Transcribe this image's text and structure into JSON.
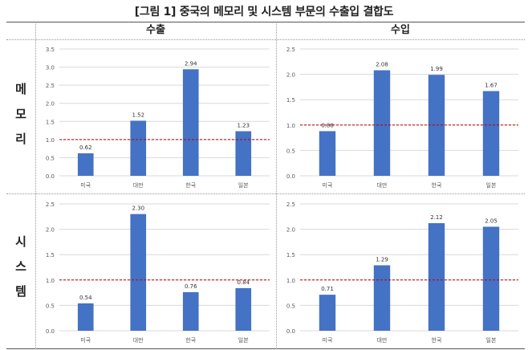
{
  "title": "[그림 1] 중국의 메모리 및 시스템 부문의 수출입 결합도",
  "columns": [
    "수출",
    "수입"
  ],
  "rows": [
    {
      "label": "메모리",
      "chars": [
        "메",
        "모",
        "리"
      ]
    },
    {
      "label": "시스템",
      "chars": [
        "시",
        "스",
        "템"
      ]
    }
  ],
  "colors": {
    "bar": "#4472c4",
    "reference_line": "#c00000",
    "gridline": "#d9d9d9",
    "axis_text": "#595959"
  },
  "chart_data": [
    {
      "type": "bar",
      "row": "메모리",
      "column": "수출",
      "categories": [
        "미국",
        "대만",
        "한국",
        "일본"
      ],
      "values": [
        0.62,
        1.52,
        2.94,
        1.23
      ],
      "data_labels": [
        "0.62",
        "1.52",
        "2.94",
        "1.23"
      ],
      "ylim": [
        0,
        3.5
      ],
      "ticks": [
        "0.0",
        "0.5",
        "1.0",
        "1.5",
        "2.0",
        "2.5",
        "3.0",
        "3.5"
      ],
      "reference_line": 1.0,
      "grid": true
    },
    {
      "type": "bar",
      "row": "메모리",
      "column": "수입",
      "categories": [
        "미국",
        "대만",
        "한국",
        "일본"
      ],
      "values": [
        0.88,
        2.08,
        1.99,
        1.67
      ],
      "data_labels": [
        "0.88",
        "2.08",
        "1.99",
        "1.67"
      ],
      "ylim": [
        0,
        2.5
      ],
      "ticks": [
        "0.0",
        "0.5",
        "1.0",
        "1.5",
        "2.0",
        "2.5"
      ],
      "reference_line": 1.0,
      "grid": true
    },
    {
      "type": "bar",
      "row": "시스템",
      "column": "수출",
      "categories": [
        "미국",
        "대만",
        "한국",
        "일본"
      ],
      "values": [
        0.54,
        2.3,
        0.76,
        0.84
      ],
      "data_labels": [
        "0.54",
        "2.30",
        "0.76",
        "0.84"
      ],
      "ylim": [
        0,
        2.5
      ],
      "ticks": [
        "0.0",
        "0.5",
        "1.0",
        "1.5",
        "2.0",
        "2.5"
      ],
      "reference_line": 1.0,
      "grid": true
    },
    {
      "type": "bar",
      "row": "시스템",
      "column": "수입",
      "categories": [
        "미국",
        "대만",
        "한국",
        "일본"
      ],
      "values": [
        0.71,
        1.29,
        2.12,
        2.05
      ],
      "data_labels": [
        "0.71",
        "1.29",
        "2.12",
        "2.05"
      ],
      "ylim": [
        0,
        2.5
      ],
      "ticks": [
        "0.0",
        "0.5",
        "1.0",
        "1.5",
        "2.0",
        "2.5"
      ],
      "reference_line": 1.0,
      "grid": true
    }
  ]
}
